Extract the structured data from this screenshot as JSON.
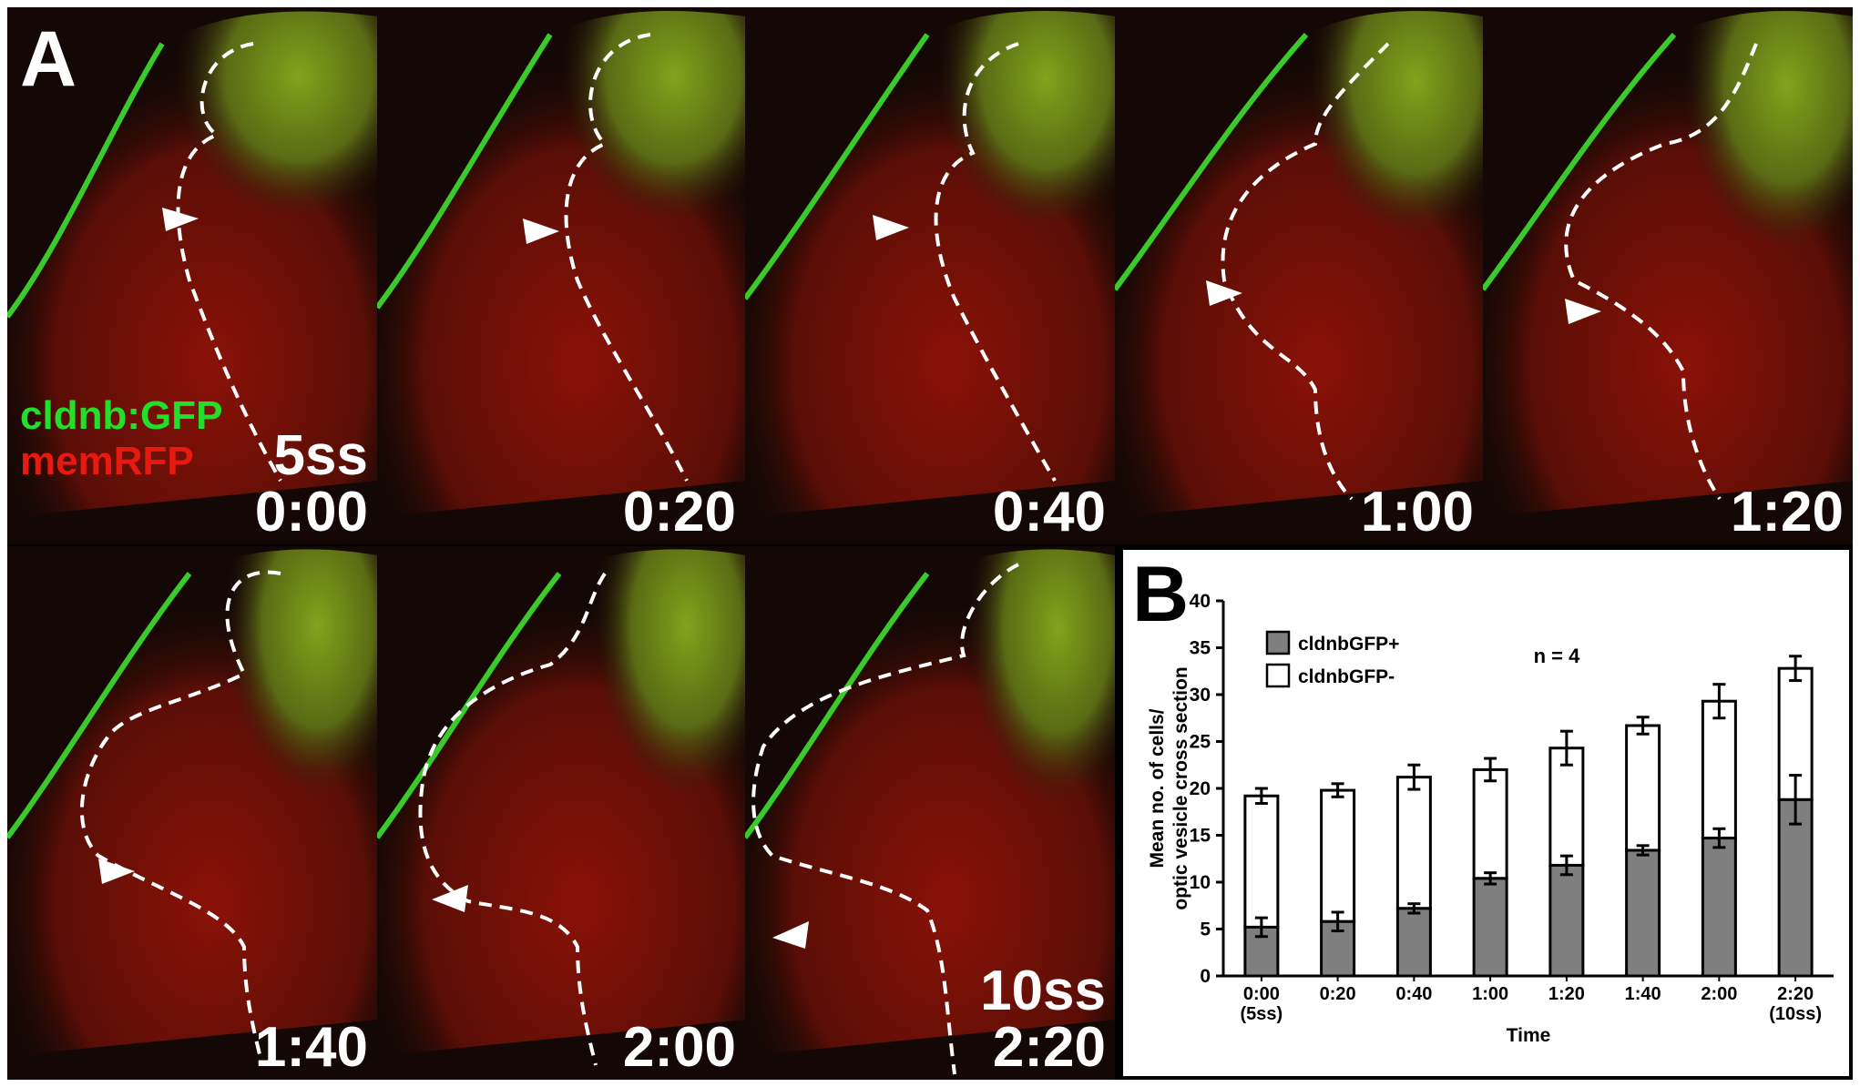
{
  "panel_a": {
    "letter": "A",
    "legend": {
      "green_label": "cldnb:GFP",
      "red_label": "memRFP",
      "green_color": "#22e02a",
      "red_color": "#e81a10"
    },
    "frames": [
      {
        "time": "0:00",
        "stage": "5ss"
      },
      {
        "time": "0:20",
        "stage": ""
      },
      {
        "time": "0:40",
        "stage": ""
      },
      {
        "time": "1:00",
        "stage": ""
      },
      {
        "time": "1:20",
        "stage": ""
      },
      {
        "time": "1:40",
        "stage": ""
      },
      {
        "time": "2:00",
        "stage": ""
      },
      {
        "time": "2:20",
        "stage": "10ss"
      }
    ]
  },
  "panel_b": {
    "letter": "B",
    "annotation": "n = 4"
  },
  "chart_data": {
    "type": "bar",
    "stacked": true,
    "categories": [
      "0:00",
      "0:20",
      "0:40",
      "1:00",
      "1:20",
      "1:40",
      "2:00",
      "2:20"
    ],
    "category_sublabels": [
      "(5ss)",
      "",
      "",
      "",
      "",
      "",
      "",
      "(10ss)"
    ],
    "xlabel": "Time",
    "ylabel": "Mean no. of cells/ optic vesicle cross section",
    "ylabel_lines": [
      "Mean no. of cells/",
      "optic vesicle cross section"
    ],
    "ylim": [
      0,
      40
    ],
    "yticks": [
      0,
      5,
      10,
      15,
      20,
      25,
      30,
      35,
      40
    ],
    "legend_position": "top-left",
    "series": [
      {
        "name": "cldnbGFP+",
        "color": "#7f7f7f",
        "values": [
          5.2,
          5.8,
          7.2,
          10.4,
          11.8,
          13.4,
          14.7,
          18.8
        ],
        "errors": [
          1.0,
          1.0,
          0.5,
          0.6,
          1.0,
          0.5,
          1.0,
          2.6
        ]
      },
      {
        "name": "cldnbGFP-",
        "color": "#ffffff",
        "totals": [
          19.2,
          19.8,
          21.2,
          22.0,
          24.3,
          26.7,
          29.3,
          32.8
        ],
        "errors": [
          0.8,
          0.7,
          1.3,
          1.2,
          1.8,
          0.9,
          1.8,
          1.3
        ]
      }
    ]
  }
}
